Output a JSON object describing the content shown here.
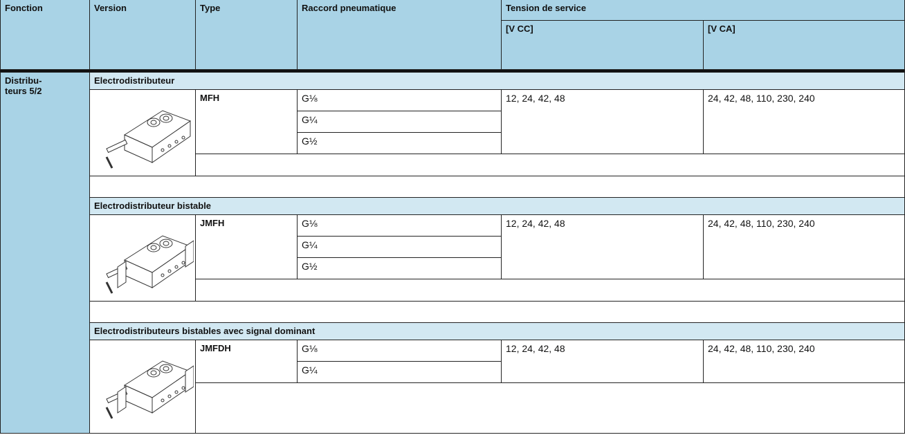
{
  "header": {
    "fonction": "Fonction",
    "version": "Version",
    "type": "Type",
    "raccord": "Raccord pneumatique",
    "tension": "Tension de service",
    "vcc": "[V CC]",
    "vca": "[V CA]"
  },
  "fonction_label": [
    "Distribu-",
    "teurs 5/2"
  ],
  "groups": [
    {
      "title": "Electrodistributeur",
      "type": "MFH",
      "connections": [
        "G⅛",
        "G¼",
        "G½"
      ],
      "vcc": "12, 24, 42, 48",
      "vca": "24, 42, 48, 110, 230, 240"
    },
    {
      "title": "Electrodistributeur bistable",
      "type": "JMFH",
      "connections": [
        "G⅛",
        "G¼",
        "G½"
      ],
      "vcc": "12, 24, 42, 48",
      "vca": "24, 42, 48, 110, 230, 240"
    },
    {
      "title": "Electrodistributeurs bistables avec signal dominant",
      "type": "JMFDH",
      "connections": [
        "G⅛",
        "G¼"
      ],
      "vcc": "12, 24, 42, 48",
      "vca": "24, 42, 48, 110, 230, 240"
    }
  ]
}
